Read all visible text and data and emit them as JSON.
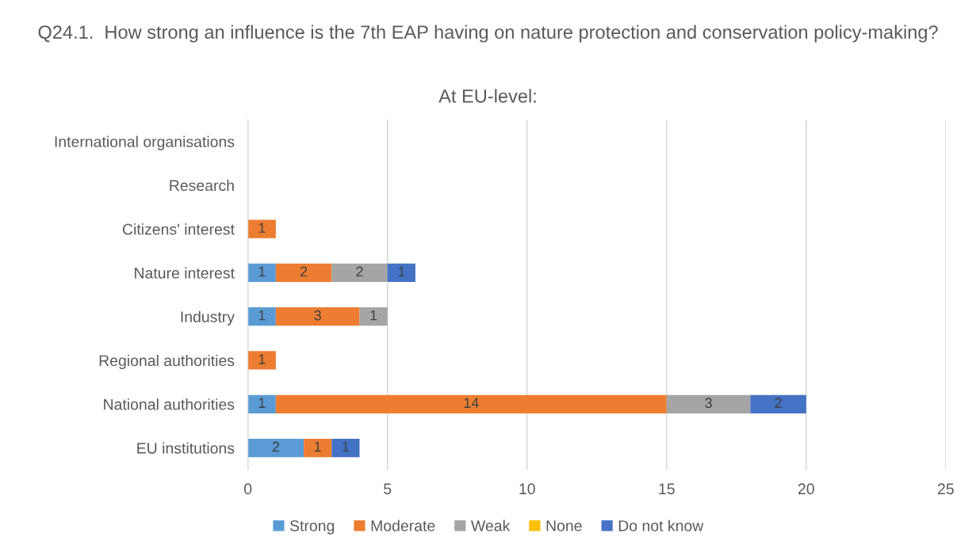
{
  "chart_data": {
    "type": "bar",
    "orientation": "horizontal",
    "stacked": true,
    "title": "Q24.1.  How strong an influence is the 7th EAP having on nature protection and conservation policy-making?",
    "subtitle": "At EU-level:",
    "categories": [
      "International organisations",
      "Research",
      "Citizens' interest",
      "Nature interest",
      "Industry",
      "Regional authorities",
      "National authorities",
      "EU institutions"
    ],
    "series": [
      {
        "name": "Strong",
        "color": "#5b9bd5",
        "values": [
          null,
          null,
          null,
          1,
          1,
          null,
          1,
          2
        ]
      },
      {
        "name": "Moderate",
        "color": "#ed7d31",
        "values": [
          null,
          null,
          1,
          2,
          3,
          1,
          14,
          1
        ]
      },
      {
        "name": "Weak",
        "color": "#a5a5a5",
        "values": [
          null,
          null,
          null,
          2,
          1,
          null,
          3,
          null
        ]
      },
      {
        "name": "None",
        "color": "#ffc000",
        "values": [
          null,
          null,
          null,
          null,
          null,
          null,
          null,
          null
        ]
      },
      {
        "name": "Do not know",
        "color": "#4472c4",
        "values": [
          null,
          null,
          null,
          1,
          null,
          null,
          2,
          1
        ]
      }
    ],
    "xlim": [
      0,
      25
    ],
    "xticks": [
      0,
      5,
      10,
      15,
      20,
      25
    ],
    "grid": "x",
    "legend": "bottom",
    "data_labels": true
  }
}
